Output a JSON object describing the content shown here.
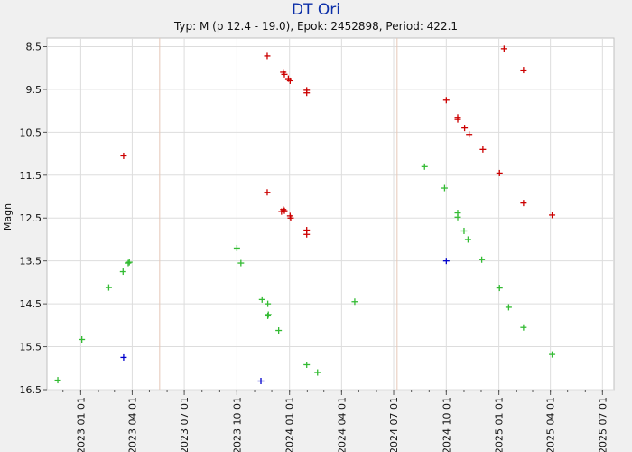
{
  "chart_data": {
    "type": "scatter",
    "title": "DT Ori",
    "subtitle": "Typ: M (p 12.4 - 19.0), Epok: 2452898, Period: 422.1",
    "xlabel": "",
    "ylabel": "Magn",
    "xlim": [
      "2022-11-03",
      "2025-07-21"
    ],
    "ylim": [
      16.5,
      8.3
    ],
    "y_inverted": true,
    "grid": true,
    "yticks": [
      8.5,
      9.5,
      10.5,
      11.5,
      12.5,
      13.5,
      14.5,
      15.5,
      16.5
    ],
    "ytick_labels": [
      "8.5",
      "9.5",
      "10.5",
      "11.5",
      "12.5",
      "13.5",
      "14.5",
      "15.5",
      "16.5"
    ],
    "xticks": [
      "2023-01-01",
      "2023-04-01",
      "2023-07-01",
      "2023-10-01",
      "2024-01-01",
      "2024-04-01",
      "2024-07-01",
      "2024-10-01",
      "2025-01-01",
      "2025-04-01",
      "2025-07-01"
    ],
    "xtick_labels": [
      "2023 01 01",
      "2023 04 01",
      "2023 07 01",
      "2023 10 01",
      "2024 01 01",
      "2024 04 01",
      "2024 07 01",
      "2024 10 01",
      "2025 01 01",
      "2025 04 01",
      "2025 07 01"
    ],
    "vertical_markers": [
      "2023-05-19",
      "2024-07-07"
    ],
    "series": [
      {
        "color": "#cc0000",
        "points": [
          {
            "x": "2023-03-17",
            "y": 11.05
          },
          {
            "x": "2023-11-23",
            "y": 8.72
          },
          {
            "x": "2023-12-21",
            "y": 9.1
          },
          {
            "x": "2023-12-23",
            "y": 9.15
          },
          {
            "x": "2023-12-30",
            "y": 9.25
          },
          {
            "x": "2024-01-02",
            "y": 9.3
          },
          {
            "x": "2024-01-31",
            "y": 9.52
          },
          {
            "x": "2024-01-31",
            "y": 9.58
          },
          {
            "x": "2023-11-23",
            "y": 11.9
          },
          {
            "x": "2023-12-18",
            "y": 12.35
          },
          {
            "x": "2023-12-21",
            "y": 12.3
          },
          {
            "x": "2023-12-23",
            "y": 12.33
          },
          {
            "x": "2024-01-02",
            "y": 12.45
          },
          {
            "x": "2024-01-03",
            "y": 12.5
          },
          {
            "x": "2024-01-31",
            "y": 12.78
          },
          {
            "x": "2024-01-31",
            "y": 12.88
          },
          {
            "x": "2024-10-01",
            "y": 9.75
          },
          {
            "x": "2024-10-21",
            "y": 10.15
          },
          {
            "x": "2024-10-21",
            "y": 10.2
          },
          {
            "x": "2024-11-02",
            "y": 10.4
          },
          {
            "x": "2024-11-10",
            "y": 10.55
          },
          {
            "x": "2024-12-04",
            "y": 10.9
          },
          {
            "x": "2025-01-02",
            "y": 11.45
          },
          {
            "x": "2025-01-10",
            "y": 8.55
          },
          {
            "x": "2025-02-13",
            "y": 9.05
          },
          {
            "x": "2025-02-13",
            "y": 12.15
          },
          {
            "x": "2025-04-04",
            "y": 12.43
          }
        ]
      },
      {
        "color": "#33bb33",
        "points": [
          {
            "x": "2022-11-22",
            "y": 16.28
          },
          {
            "x": "2023-01-03",
            "y": 15.33
          },
          {
            "x": "2023-02-19",
            "y": 14.12
          },
          {
            "x": "2023-03-16",
            "y": 13.75
          },
          {
            "x": "2023-03-25",
            "y": 13.55
          },
          {
            "x": "2023-03-27",
            "y": 13.53
          },
          {
            "x": "2023-10-01",
            "y": 13.2
          },
          {
            "x": "2023-10-08",
            "y": 13.55
          },
          {
            "x": "2023-11-14",
            "y": 14.4
          },
          {
            "x": "2023-11-24",
            "y": 14.5
          },
          {
            "x": "2023-11-24",
            "y": 14.78
          },
          {
            "x": "2023-11-25",
            "y": 14.75
          },
          {
            "x": "2023-12-13",
            "y": 15.12
          },
          {
            "x": "2024-01-31",
            "y": 15.92
          },
          {
            "x": "2024-02-19",
            "y": 16.1
          },
          {
            "x": "2024-04-24",
            "y": 14.45
          },
          {
            "x": "2024-08-24",
            "y": 11.3
          },
          {
            "x": "2024-09-28",
            "y": 11.8
          },
          {
            "x": "2024-10-21",
            "y": 12.38
          },
          {
            "x": "2024-10-21",
            "y": 12.48
          },
          {
            "x": "2024-11-01",
            "y": 12.8
          },
          {
            "x": "2024-11-08",
            "y": 13.0
          },
          {
            "x": "2024-12-02",
            "y": 13.47
          },
          {
            "x": "2025-01-02",
            "y": 14.13
          },
          {
            "x": "2025-01-18",
            "y": 14.58
          },
          {
            "x": "2025-02-13",
            "y": 15.05
          },
          {
            "x": "2025-04-04",
            "y": 15.68
          }
        ]
      },
      {
        "color": "#0000cc",
        "points": [
          {
            "x": "2023-03-17",
            "y": 15.75
          },
          {
            "x": "2023-11-12",
            "y": 16.3
          },
          {
            "x": "2024-10-01",
            "y": 13.5
          }
        ]
      }
    ]
  }
}
